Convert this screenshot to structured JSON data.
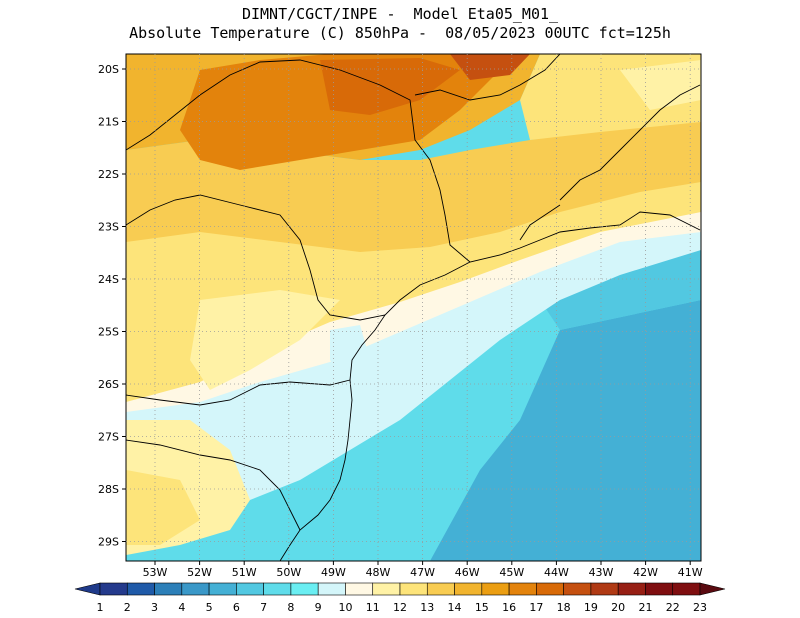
{
  "title": {
    "line1": "DIMNT/CGCT/INPE -  Model Eta05_M01_",
    "line2": "Absolute Temperature (C) 850hPa -  08/05/2023 00UTC fct=125h"
  },
  "map": {
    "lat_labels": [
      "20S",
      "21S",
      "22S",
      "23S",
      "24S",
      "25S",
      "26S",
      "27S",
      "28S",
      "29S"
    ],
    "lon_labels": [
      "53W",
      "52W",
      "51W",
      "50W",
      "49W",
      "48W",
      "47W",
      "46W",
      "45W",
      "44W",
      "43W",
      "42W",
      "41W"
    ],
    "grid": "dotted"
  },
  "colorbar": {
    "labels": [
      "1",
      "2",
      "3",
      "4",
      "5",
      "6",
      "7",
      "8",
      "9",
      "10",
      "11",
      "12",
      "13",
      "14",
      "15",
      "16",
      "17",
      "18",
      "19",
      "20",
      "21",
      "22",
      "23"
    ],
    "colors": [
      "#243a8c",
      "#1f5aa8",
      "#2c7fb8",
      "#3a98c8",
      "#44b0d5",
      "#52c8e1",
      "#5fdcea",
      "#6aeef2",
      "#d4f6fa",
      "#fff8e4",
      "#fff2a6",
      "#fde47a",
      "#f8cc52",
      "#f1b42e",
      "#eb9e12",
      "#e3830c",
      "#d86a08",
      "#c55010",
      "#b03a14",
      "#971f14",
      "#7f0e10"
    ],
    "left_arrow_color": "#1f3a8a",
    "right_arrow_color": "#5a0a10"
  }
}
